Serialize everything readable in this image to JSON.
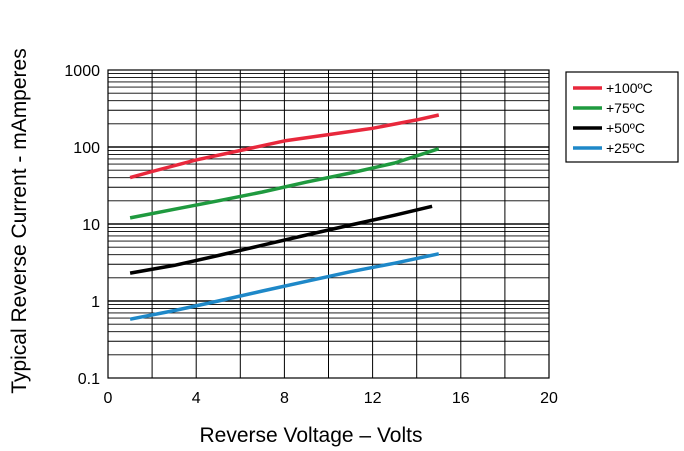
{
  "chart_data": {
    "type": "line",
    "xlabel": "Reverse Voltage – Volts",
    "ylabel": "Typical Reverse Current - mAmperes",
    "xlim": [
      0,
      20
    ],
    "ylim": [
      0.1,
      1000
    ],
    "y_scale": "log",
    "grid": true,
    "legend_position": "right",
    "x_ticks": [
      "0",
      "4",
      "8",
      "12",
      "16",
      "20"
    ],
    "y_ticks": [
      "0.1",
      "1",
      "10",
      "100",
      "1000"
    ],
    "series": [
      {
        "name": "+100ºC",
        "color": "#e8283c",
        "x": [
          1,
          2,
          4,
          6,
          8,
          10,
          12,
          14,
          15
        ],
        "y": [
          40,
          48,
          68,
          90,
          120,
          145,
          175,
          225,
          260
        ]
      },
      {
        "name": "+75ºC",
        "color": "#1f9a3f",
        "x": [
          1,
          3,
          5,
          7,
          9,
          11,
          13,
          15
        ],
        "y": [
          12,
          15.5,
          20,
          26,
          35,
          46,
          62,
          95
        ]
      },
      {
        "name": "+50ºC",
        "color": "#000000",
        "x": [
          1,
          3,
          5,
          7,
          9,
          11,
          13,
          14.7
        ],
        "y": [
          2.3,
          2.9,
          3.9,
          5.3,
          7.2,
          9.7,
          13,
          17
        ]
      },
      {
        "name": "+25ºC",
        "color": "#1e88c8",
        "x": [
          1,
          3,
          5,
          7,
          9,
          11,
          13,
          15
        ],
        "y": [
          0.58,
          0.75,
          1.0,
          1.35,
          1.8,
          2.4,
          3.1,
          4.1
        ]
      }
    ]
  }
}
